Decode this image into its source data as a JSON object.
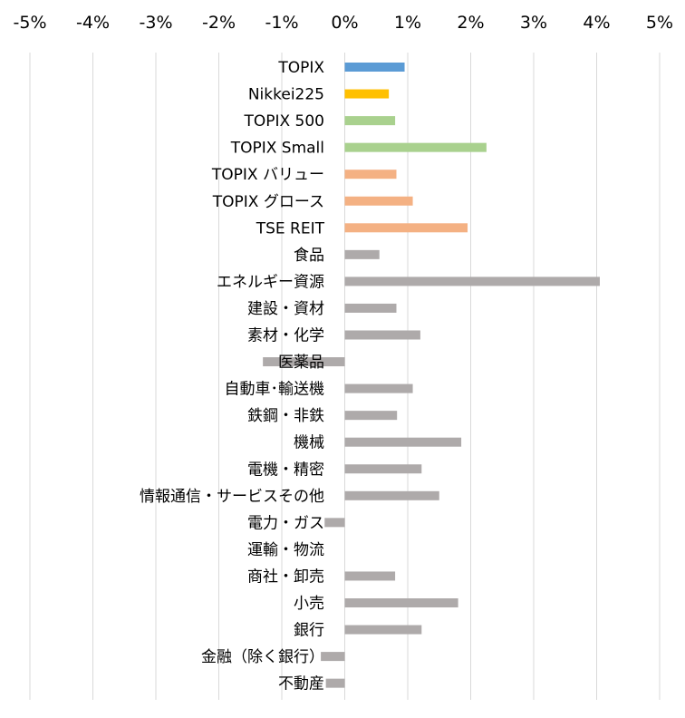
{
  "chart_data": {
    "type": "bar",
    "orientation": "horizontal",
    "title": "",
    "xlabel": "",
    "ylabel": "",
    "x_ticks": [
      "-5%",
      "-4%",
      "-3%",
      "-2%",
      "-1%",
      "0%",
      "1%",
      "2%",
      "3%",
      "4%",
      "5%"
    ],
    "xlim": [
      -5,
      5
    ],
    "x_axis_position": "top",
    "grid": "vertical",
    "legend": "none",
    "categories": [
      "TOPIX",
      "Nikkei225",
      "TOPIX 500",
      "TOPIX Small",
      "TOPIX バリュー",
      "TOPIX グロース",
      "TSE REIT",
      "食品",
      "エネルギー資源",
      "建設・資材",
      "素材・化学",
      "医薬品",
      "自動車･輸送機",
      "鉄鋼・非鉄",
      "機械",
      "電機・精密",
      "情報通信・サービスその他",
      "電力・ガス",
      "運輸・物流",
      "商社・卸売",
      "小売",
      "銀行",
      "金融（除く銀行）",
      "不動産"
    ],
    "values": [
      0.95,
      0.7,
      0.8,
      2.25,
      0.82,
      1.08,
      1.95,
      0.55,
      4.05,
      0.82,
      1.2,
      -1.3,
      1.08,
      0.83,
      1.85,
      1.22,
      1.5,
      -0.32,
      0.0,
      0.8,
      1.8,
      1.22,
      -0.38,
      -0.3
    ],
    "colors": [
      "#5b9bd5",
      "#ffc000",
      "#a9d18e",
      "#a9d18e",
      "#f4b183",
      "#f4b183",
      "#f4b183",
      "#aeaaaa",
      "#aeaaaa",
      "#aeaaaa",
      "#aeaaaa",
      "#aeaaaa",
      "#aeaaaa",
      "#aeaaaa",
      "#aeaaaa",
      "#aeaaaa",
      "#aeaaaa",
      "#aeaaaa",
      "#aeaaaa",
      "#aeaaaa",
      "#aeaaaa",
      "#aeaaaa",
      "#aeaaaa",
      "#aeaaaa"
    ],
    "gridline_color": "#d9d9d9"
  }
}
